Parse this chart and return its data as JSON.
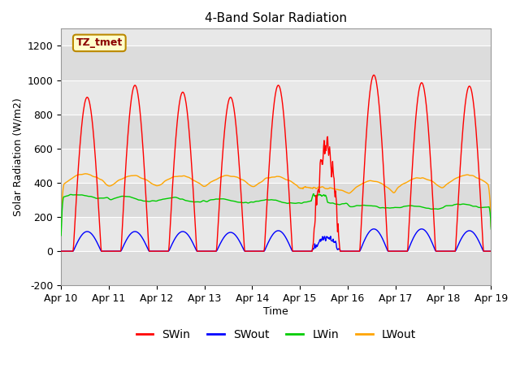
{
  "title": "4-Band Solar Radiation",
  "xlabel": "Time",
  "ylabel": "Solar Radiation (W/m2)",
  "ylim": [
    -200,
    1300
  ],
  "yticks": [
    -200,
    0,
    200,
    400,
    600,
    800,
    1000,
    1200
  ],
  "x_tick_labels": [
    "Apr 10",
    "Apr 11",
    "Apr 12",
    "Apr 13",
    "Apr 14",
    "Apr 15",
    "Apr 16",
    "Apr 17",
    "Apr 18",
    "Apr 19"
  ],
  "colors": {
    "SWin": "#FF0000",
    "SWout": "#0000FF",
    "LWin": "#00CC00",
    "LWout": "#FFA500"
  },
  "tag_label": "TZ_tmet",
  "tag_facecolor": "#FFFFCC",
  "tag_edgecolor": "#BB8800",
  "figure_facecolor": "#FFFFFF",
  "plot_bg_color": "#E8E8E8",
  "grid_color": "#FFFFFF",
  "band_colors": [
    "#DCDCDC",
    "#E8E8E8"
  ]
}
